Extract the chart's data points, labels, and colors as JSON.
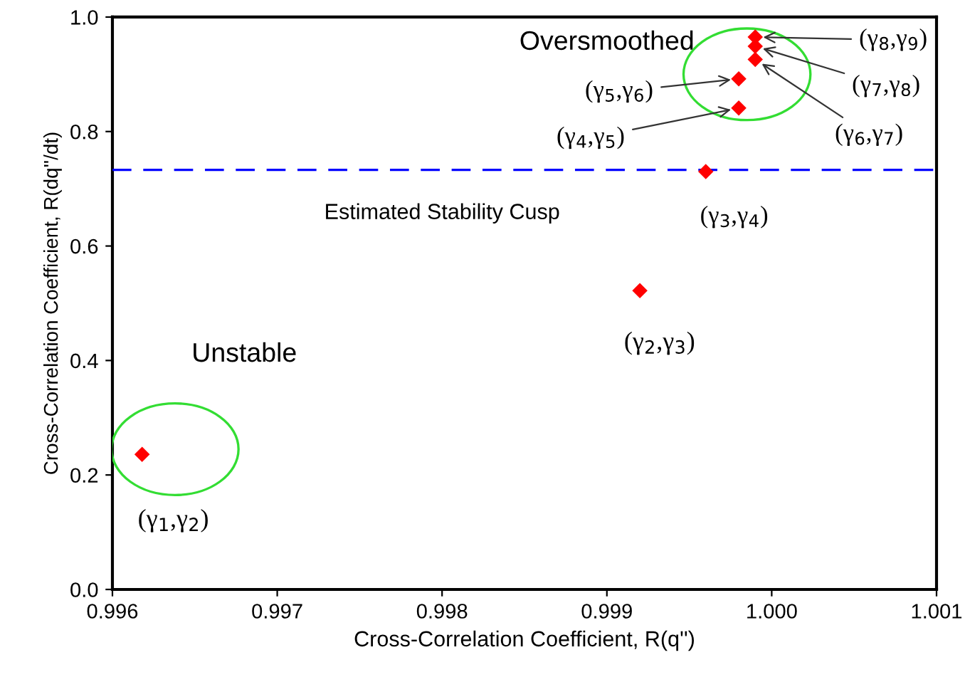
{
  "chart_data": {
    "type": "scatter",
    "xlabel": "Cross-Correlation Coefficient, R(q'')",
    "ylabel": "Cross-Correlation Coefficient, R(dq''/dt)",
    "x": [
      0.99618,
      0.9992,
      0.9996,
      0.9998,
      0.9998,
      0.9999,
      0.9999,
      0.9999
    ],
    "series": [
      {
        "color": "#ff0000",
        "values": [
          0.236,
          0.522,
          0.73,
          0.841,
          0.892,
          0.926,
          0.949,
          0.965
        ]
      }
    ],
    "marker": "diamond",
    "grid": false,
    "legend": false,
    "xlim": [
      0.996,
      1.001
    ],
    "xticks": [
      {
        "value": 0.996,
        "label": "0.996"
      },
      {
        "value": 0.997,
        "label": "0.997"
      },
      {
        "value": 0.998,
        "label": "0.998"
      },
      {
        "value": 0.999,
        "label": "0.999"
      },
      {
        "value": 1.0,
        "label": "1.000"
      },
      {
        "value": 1.001,
        "label": "1.001"
      }
    ],
    "ylim": [
      0,
      1
    ],
    "yticks": [
      {
        "value": 0,
        "label": "0.0"
      },
      {
        "value": 0.2,
        "label": "0.2"
      },
      {
        "value": 0.4,
        "label": "0.4"
      },
      {
        "value": 0.6,
        "label": "0.6"
      },
      {
        "value": 0.8,
        "label": "0.8"
      },
      {
        "value": 1.0,
        "label": "1.0"
      }
    ],
    "ref_lines": [
      {
        "axis": "y",
        "value": 0.733,
        "label": "Estimated Stability Cusp",
        "color": "#0000ff",
        "line_style": "dashed"
      }
    ],
    "annotations": [
      "(γ$_{1}$,γ$_{2}$)",
      "(γ$_{2}$,γ$_{3}$)",
      {
        "text": "(γ$_{3}$,γ$_{4}$)",
        "x": 0.9996,
        "y": 0.73
      },
      {
        "text": "(γ$_{4}$,γ$_{5}$)",
        "x": 0.9998,
        "y": 0.841
      },
      {
        "text": "(γ$_{5}$,γ$_{6}$)",
        "x": 0.9998,
        "y": 0.892
      },
      {
        "text": "(γ$_{6}$,γ$_{7}$)",
        "x": 0.9999,
        "y": 0.926
      },
      {
        "text": "(γ$_{7}$,γ$_{8}$)",
        "x": 0.9999,
        "y": 0.949
      },
      {
        "text": "(γ$_{8}$,γ$_{9}$)",
        "x": 0.9999,
        "y": 0.965
      },
      "Oversmoothed",
      "Unstable"
    ]
  }
}
